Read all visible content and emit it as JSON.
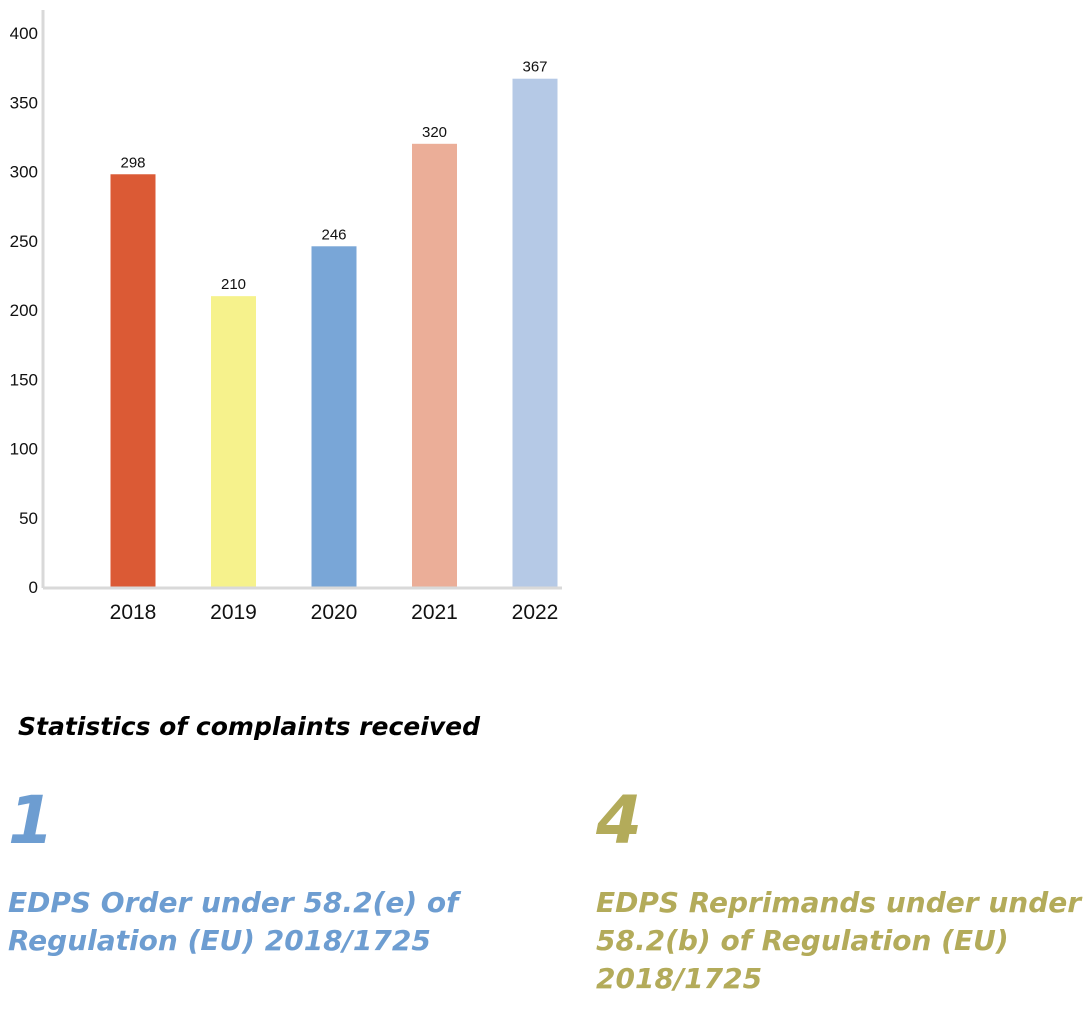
{
  "chart_data": {
    "type": "bar",
    "categories": [
      "2018",
      "2019",
      "2020",
      "2021",
      "2022"
    ],
    "values": [
      298,
      210,
      246,
      320,
      367
    ],
    "colors": [
      "#db5a35",
      "#f6f28c",
      "#79a6d7",
      "#ebae98",
      "#b5c9e6"
    ],
    "ylim": [
      0,
      400
    ],
    "yticks": [
      "0",
      "50",
      "100",
      "150",
      "200",
      "250",
      "300",
      "350",
      "400"
    ],
    "grid": false,
    "title": "",
    "xlabel": "",
    "ylabel": ""
  },
  "caption": "Statistics of complaints received",
  "stats": {
    "order": {
      "number": "1",
      "text": "EDPS Order under 58.2(e) of Regulation (EU) 2018/1725",
      "color": "#6d9dd1"
    },
    "reprimand": {
      "number": "4",
      "text": "EDPS Reprimands under under 58.2(b) of Regulation (EU) 2018/1725",
      "color": "#b3ab5a"
    }
  }
}
